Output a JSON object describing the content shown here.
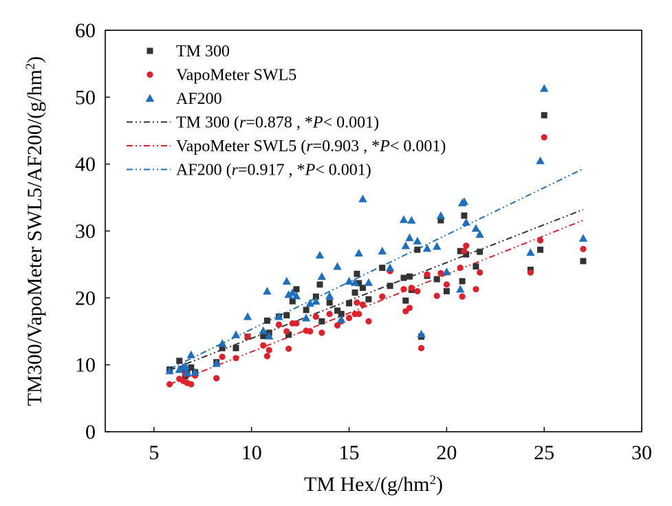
{
  "chart_data": {
    "type": "scatter",
    "title": "",
    "xlabel": "TM Hex/(g/hm²)",
    "ylabel": "TM300/VapoMeter SWL5/AF200/(g/hm²)",
    "xlim": [
      2.5,
      30
    ],
    "ylim": [
      0,
      60
    ],
    "xticks": [
      5,
      10,
      15,
      20,
      25,
      30
    ],
    "yticks": [
      0,
      10,
      20,
      30,
      40,
      50,
      60
    ],
    "legend_placement": "top-left",
    "grid": false,
    "series": [
      {
        "name": "TM 300",
        "marker": "square",
        "color": "#333333",
        "points": [
          [
            5.8,
            9.3
          ],
          [
            6.3,
            10.6
          ],
          [
            6.5,
            9.4
          ],
          [
            6.7,
            9.1
          ],
          [
            6.9,
            9.6
          ],
          [
            7.1,
            8.9
          ],
          [
            6.6,
            8.3
          ],
          [
            8.2,
            10.4
          ],
          [
            8.5,
            12.5
          ],
          [
            9.2,
            12.5
          ],
          [
            9.8,
            14.2
          ],
          [
            10.6,
            14.3
          ],
          [
            10.8,
            16.6
          ],
          [
            10.9,
            14.8
          ],
          [
            11.4,
            17.2
          ],
          [
            11.8,
            17.4
          ],
          [
            11.9,
            14.5
          ],
          [
            12.1,
            19.5
          ],
          [
            12.3,
            21.3
          ],
          [
            12.8,
            18.2
          ],
          [
            13.3,
            20.2
          ],
          [
            13.5,
            22.0
          ],
          [
            13.6,
            16.5
          ],
          [
            14.0,
            19.3
          ],
          [
            14.4,
            18.1
          ],
          [
            14.6,
            17.6
          ],
          [
            15.0,
            19.2
          ],
          [
            15.3,
            20.8
          ],
          [
            15.4,
            23.6
          ],
          [
            15.5,
            22.2
          ],
          [
            15.7,
            21.5
          ],
          [
            16.0,
            19.8
          ],
          [
            16.7,
            24.5
          ],
          [
            17.1,
            21.8
          ],
          [
            17.8,
            23.0
          ],
          [
            17.9,
            19.6
          ],
          [
            18.1,
            23.2
          ],
          [
            18.2,
            21.2
          ],
          [
            18.5,
            27.2
          ],
          [
            18.7,
            14.2
          ],
          [
            19.0,
            23.3
          ],
          [
            19.5,
            22.8
          ],
          [
            19.7,
            31.6
          ],
          [
            20.0,
            21.0
          ],
          [
            20.7,
            27.0
          ],
          [
            20.8,
            22.5
          ],
          [
            20.9,
            32.3
          ],
          [
            21.0,
            26.5
          ],
          [
            21.5,
            24.7
          ],
          [
            21.7,
            26.9
          ],
          [
            24.3,
            24.2
          ],
          [
            24.8,
            27.2
          ],
          [
            25.0,
            47.3
          ],
          [
            27.0,
            25.5
          ]
        ]
      },
      {
        "name": "VapoMeter SWL5",
        "marker": "circle",
        "color": "#e0202a",
        "points": [
          [
            5.8,
            7.1
          ],
          [
            6.3,
            7.9
          ],
          [
            6.5,
            7.6
          ],
          [
            6.7,
            7.3
          ],
          [
            6.9,
            7.1
          ],
          [
            7.1,
            8.4
          ],
          [
            6.6,
            8.6
          ],
          [
            8.2,
            8.0
          ],
          [
            8.5,
            11.2
          ],
          [
            9.2,
            11.0
          ],
          [
            9.8,
            14.2
          ],
          [
            10.6,
            12.9
          ],
          [
            10.8,
            11.3
          ],
          [
            10.9,
            12.2
          ],
          [
            11.4,
            16.0
          ],
          [
            11.8,
            15.0
          ],
          [
            11.9,
            12.4
          ],
          [
            12.1,
            16.2
          ],
          [
            12.3,
            16.2
          ],
          [
            12.8,
            15.1
          ],
          [
            13.0,
            15.0
          ],
          [
            13.3,
            17.2
          ],
          [
            13.6,
            14.8
          ],
          [
            14.0,
            17.6
          ],
          [
            14.4,
            15.9
          ],
          [
            14.6,
            16.5
          ],
          [
            15.0,
            17.0
          ],
          [
            15.3,
            17.6
          ],
          [
            15.4,
            19.3
          ],
          [
            15.5,
            17.6
          ],
          [
            15.7,
            19.0
          ],
          [
            16.0,
            16.5
          ],
          [
            16.7,
            20.2
          ],
          [
            17.1,
            24.0
          ],
          [
            17.8,
            21.3
          ],
          [
            17.9,
            18.0
          ],
          [
            18.1,
            18.5
          ],
          [
            18.2,
            21.5
          ],
          [
            18.5,
            21.0
          ],
          [
            18.7,
            12.5
          ],
          [
            19.0,
            23.5
          ],
          [
            19.5,
            20.3
          ],
          [
            19.7,
            23.7
          ],
          [
            20.0,
            22.0
          ],
          [
            20.7,
            24.5
          ],
          [
            20.8,
            20.2
          ],
          [
            20.9,
            27.0
          ],
          [
            21.0,
            27.8
          ],
          [
            21.5,
            21.3
          ],
          [
            21.7,
            23.8
          ],
          [
            24.3,
            23.8
          ],
          [
            24.8,
            28.6
          ],
          [
            25.0,
            44.0
          ],
          [
            27.0,
            27.3
          ]
        ]
      },
      {
        "name": "AF200",
        "marker": "triangle",
        "color": "#1f6fbf",
        "points": [
          [
            5.8,
            9.1
          ],
          [
            6.3,
            9.3
          ],
          [
            6.5,
            9.6
          ],
          [
            6.7,
            8.8
          ],
          [
            6.9,
            11.5
          ],
          [
            7.1,
            8.9
          ],
          [
            6.6,
            9.8
          ],
          [
            8.2,
            10.2
          ],
          [
            8.5,
            13.2
          ],
          [
            9.2,
            14.5
          ],
          [
            9.8,
            17.2
          ],
          [
            10.6,
            15.1
          ],
          [
            10.8,
            21.0
          ],
          [
            10.9,
            14.3
          ],
          [
            11.4,
            17.2
          ],
          [
            11.8,
            22.5
          ],
          [
            11.9,
            20.5
          ],
          [
            12.1,
            20.8
          ],
          [
            12.3,
            20.3
          ],
          [
            12.8,
            17.0
          ],
          [
            13.0,
            19.2
          ],
          [
            13.3,
            19.5
          ],
          [
            13.5,
            26.4
          ],
          [
            13.6,
            23.2
          ],
          [
            14.0,
            20.3
          ],
          [
            14.4,
            24.7
          ],
          [
            14.6,
            16.8
          ],
          [
            15.0,
            22.5
          ],
          [
            15.3,
            22.3
          ],
          [
            15.5,
            26.7
          ],
          [
            15.7,
            34.8
          ],
          [
            16.0,
            22.3
          ],
          [
            16.7,
            27.0
          ],
          [
            17.1,
            24.5
          ],
          [
            17.8,
            31.7
          ],
          [
            17.9,
            27.8
          ],
          [
            18.1,
            29.0
          ],
          [
            18.2,
            31.6
          ],
          [
            18.5,
            28.5
          ],
          [
            18.7,
            14.6
          ],
          [
            19.0,
            27.4
          ],
          [
            19.5,
            27.7
          ],
          [
            19.7,
            32.3
          ],
          [
            20.0,
            23.9
          ],
          [
            20.7,
            21.3
          ],
          [
            20.8,
            34.2
          ],
          [
            20.9,
            34.4
          ],
          [
            21.0,
            31.3
          ],
          [
            21.5,
            30.4
          ],
          [
            21.7,
            29.5
          ],
          [
            24.3,
            26.8
          ],
          [
            24.8,
            40.5
          ],
          [
            25.0,
            51.3
          ],
          [
            27.0,
            28.9
          ]
        ]
      }
    ],
    "fit_lines": [
      {
        "name": "TM 300 (r=0.878, *P<0.001)",
        "label_parts": [
          "TM 300 (",
          "r",
          "=0.878 , *",
          "P",
          "< 0.001)"
        ],
        "color": "#333333",
        "x": [
          5.8,
          27.0
        ],
        "y": [
          9.2,
          33.2
        ]
      },
      {
        "name": "VapoMeter SWL5 (r=0.903, *P<0.001)",
        "label_parts": [
          "VapoMeter SWL5 (",
          "r",
          "=0.903 , *",
          "P",
          "< 0.001)"
        ],
        "color": "#e0202a",
        "x": [
          5.8,
          27.0
        ],
        "y": [
          7.1,
          31.6
        ]
      },
      {
        "name": "AF200 (r=0.917, *P<0.001)",
        "label_parts": [
          "AF200 (",
          "r",
          "=0.917 , *",
          "P",
          "< 0.001)"
        ],
        "color": "#1f6fbf",
        "x": [
          5.8,
          27.0
        ],
        "y": [
          9.4,
          39.3
        ]
      }
    ]
  }
}
